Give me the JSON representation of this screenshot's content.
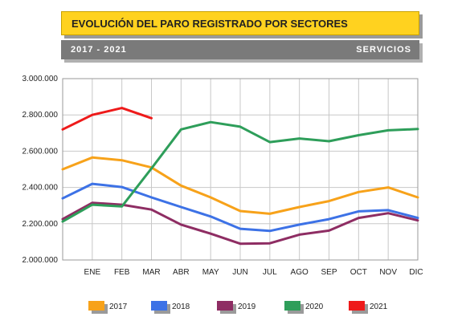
{
  "header": {
    "title": "EVOLUCIÓN DEL PARO REGISTRADO POR SECTORES",
    "years": "2017 - 2021",
    "sector": "SERVICIOS"
  },
  "chart_data": {
    "type": "line",
    "categories": [
      "",
      "ENE",
      "FEB",
      "MAR",
      "ABR",
      "MAY",
      "JUN",
      "JUL",
      "AGO",
      "SEP",
      "OCT",
      "NOV",
      "DIC"
    ],
    "ylim": [
      2000000,
      3000000
    ],
    "yticks": [
      2000000,
      2200000,
      2400000,
      2600000,
      2800000,
      3000000
    ],
    "ytick_labels": [
      "2.000.000",
      "2.200.000",
      "2.400.000",
      "2.600.000",
      "2.800.000",
      "3.000.000"
    ],
    "grid": true,
    "legend_position": "bottom",
    "series": [
      {
        "name": "2017",
        "color": "#f7a21a",
        "values": [
          2500000,
          2565000,
          2550000,
          2510000,
          2410000,
          2345000,
          2270000,
          2255000,
          2292000,
          2325000,
          2375000,
          2400000,
          2345000
        ]
      },
      {
        "name": "2018",
        "color": "#3d72e6",
        "values": [
          2340000,
          2420000,
          2402000,
          2345000,
          2292000,
          2240000,
          2172000,
          2160000,
          2195000,
          2225000,
          2268000,
          2275000,
          2232000
        ]
      },
      {
        "name": "2019",
        "color": "#8e2d63",
        "values": [
          2225000,
          2315000,
          2305000,
          2278000,
          2195000,
          2145000,
          2090000,
          2092000,
          2140000,
          2162000,
          2232000,
          2258000,
          2218000
        ]
      },
      {
        "name": "2020",
        "color": "#2e9e5a",
        "values": [
          2212000,
          2305000,
          2295000,
          2505000,
          2720000,
          2760000,
          2735000,
          2650000,
          2670000,
          2655000,
          2688000,
          2715000,
          2722000
        ]
      },
      {
        "name": "2021",
        "color": "#ee1a1a",
        "values": [
          2720000,
          2800000,
          2838000,
          2782000,
          null,
          null,
          null,
          null,
          null,
          null,
          null,
          null,
          null
        ]
      }
    ]
  }
}
